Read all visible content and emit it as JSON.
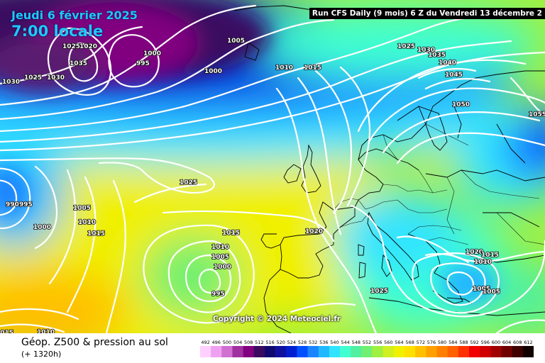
{
  "header": {
    "date": "Jeudi 6 février 2025",
    "time": "7:00 locale",
    "run_info": "Run CFS Daily (9 mois) 6 Z du Vendredi 13 décembre 2"
  },
  "copyright": "Copyright © 2024 Meteociel.fr",
  "legend": {
    "title": "Géop. Z500 & pression au sol",
    "subtitle": "(+ 1320h)",
    "scale_values": [
      "492",
      "496",
      "500",
      "504",
      "508",
      "512",
      "516",
      "520",
      "524",
      "528",
      "532",
      "536",
      "540",
      "544",
      "548",
      "552",
      "556",
      "560",
      "564",
      "568",
      "572",
      "576",
      "580",
      "584",
      "588",
      "592",
      "596",
      "600",
      "604",
      "608",
      "612"
    ],
    "scale_colors": [
      "#ffd0ff",
      "#f0a0f0",
      "#d070d0",
      "#a030a0",
      "#800080",
      "#3a0a60",
      "#100a70",
      "#1010a0",
      "#0020d0",
      "#0050ff",
      "#1a85ff",
      "#20b8ff",
      "#30e4ff",
      "#40ffd0",
      "#50f0a0",
      "#70f070",
      "#a0f040",
      "#d0f020",
      "#f0f000",
      "#ffe000",
      "#ffc000",
      "#ffa000",
      "#ff8000",
      "#ff6000",
      "#ff3000",
      "#f00000",
      "#d00000",
      "#a00000",
      "#700000",
      "#400000",
      "#100000"
    ]
  },
  "isobar_labels": [
    "1030",
    "1025",
    "1035",
    "1025",
    "1020",
    "1030",
    "1005",
    "995",
    "1000",
    "1000",
    "1010",
    "1015",
    "1025",
    "1030",
    "1035",
    "1040",
    "1045",
    "1050",
    "1055",
    "1025",
    "990",
    "995",
    "1005",
    "1010",
    "1000",
    "1015",
    "1015",
    "1010",
    "1005",
    "1000",
    "995",
    "1020",
    "1020",
    "1015",
    "1010",
    "1025",
    "1005",
    "1005",
    "1010",
    "1015"
  ]
}
